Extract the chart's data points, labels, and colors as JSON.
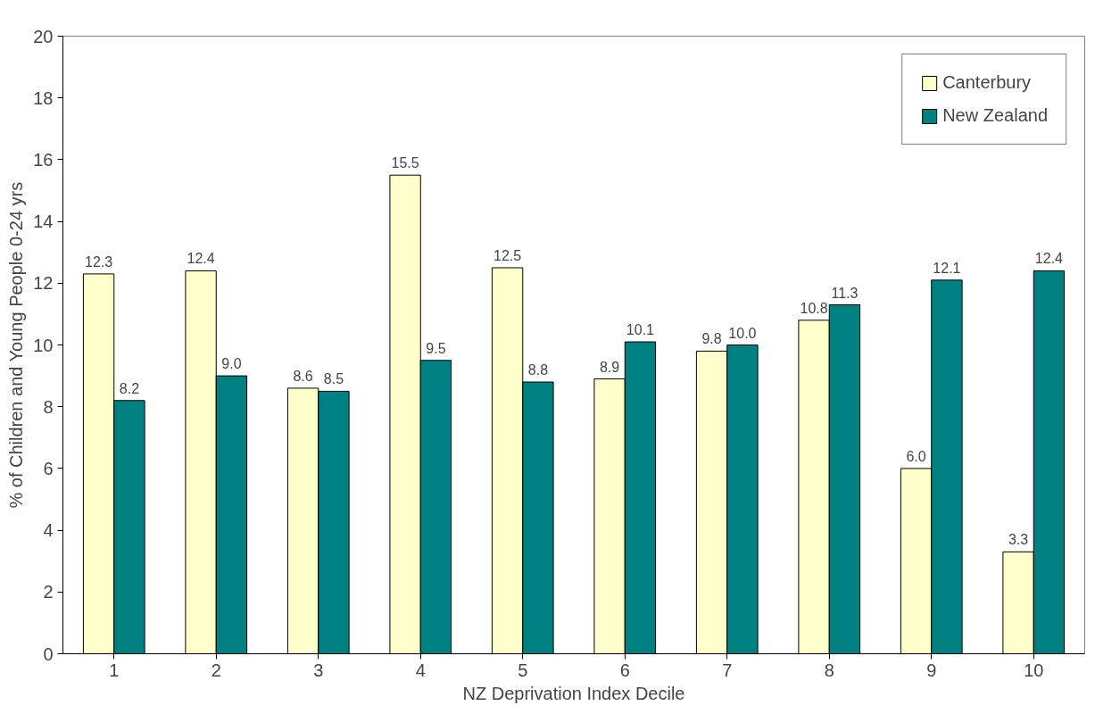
{
  "chart_data": {
    "type": "bar",
    "xlabel": "NZ Deprivation Index Decile",
    "ylabel": "% of Children and Young People 0-24 yrs",
    "categories": [
      "1",
      "2",
      "3",
      "4",
      "5",
      "6",
      "7",
      "8",
      "9",
      "10"
    ],
    "series": [
      {
        "name": "Canterbury",
        "color": "#ffffcc",
        "values": [
          12.3,
          12.4,
          8.6,
          15.5,
          12.5,
          8.9,
          9.8,
          10.8,
          6.0,
          3.3
        ],
        "value_labels": [
          "12.3",
          "12.4",
          "8.6",
          "15.5",
          "12.5",
          "8.9",
          "9.8",
          "10.8",
          "6.0",
          "3.3"
        ]
      },
      {
        "name": "New Zealand",
        "color": "#008080",
        "values": [
          8.2,
          9.0,
          8.5,
          9.5,
          8.8,
          10.1,
          10.0,
          11.3,
          12.1,
          12.4
        ],
        "value_labels": [
          "8.2",
          "9.0",
          "8.5",
          "9.5",
          "8.8",
          "10.1",
          "10.0",
          "11.3",
          "12.1",
          "12.4"
        ]
      }
    ],
    "ylim": [
      0,
      20
    ],
    "yticks": [
      0,
      2,
      4,
      6,
      8,
      10,
      12,
      14,
      16,
      18,
      20
    ],
    "grid": false,
    "legend": "top right"
  }
}
